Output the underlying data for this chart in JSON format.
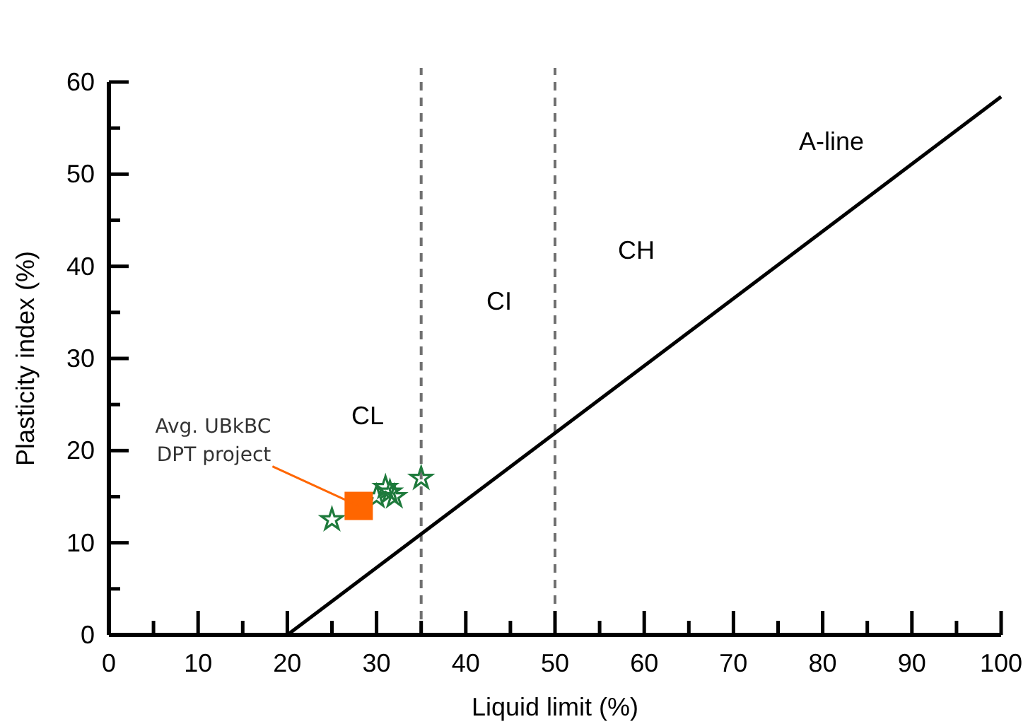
{
  "chart_data": {
    "type": "scatter",
    "xlabel": "Liquid limit (%)",
    "ylabel": "Plasticity index (%)",
    "xlim": [
      0,
      100
    ],
    "ylim": [
      0,
      60
    ],
    "xticks": [
      0,
      {
        "value": 5,
        "label": null
      },
      10,
      {
        "value": 15,
        "label": null
      },
      20,
      {
        "value": 25,
        "label": null
      },
      30,
      {
        "value": 35,
        "label": null
      },
      40,
      {
        "value": 45,
        "label": null
      },
      50,
      {
        "value": 55,
        "label": null
      },
      60,
      {
        "value": 65,
        "label": null
      },
      70,
      {
        "value": 75,
        "label": null
      },
      80,
      {
        "value": 85,
        "label": null
      },
      90,
      {
        "value": 95,
        "label": null
      },
      100
    ],
    "yticks": [
      0,
      {
        "value": 5,
        "label": null
      },
      10,
      {
        "value": 15,
        "label": null
      },
      20,
      {
        "value": 25,
        "label": null
      },
      30,
      {
        "value": 35,
        "label": null
      },
      40,
      {
        "value": 45,
        "label": null
      },
      50,
      {
        "value": 55,
        "label": null
      },
      60
    ],
    "grid": false,
    "series": [
      {
        "type": "line",
        "color": "#000000",
        "x": [
          20,
          100
        ],
        "values": [
          0,
          58.4
        ],
        "marker": "none",
        "line_style": "solid"
      },
      {
        "color": "#1e7a3c",
        "marker": "star",
        "x": [
          25,
          30,
          31,
          31.5,
          32,
          35
        ],
        "values": [
          12.5,
          15,
          16,
          15.5,
          15,
          17
        ]
      },
      {
        "color": "#ff6600",
        "marker": "square",
        "x": [
          28
        ],
        "values": [
          14
        ]
      }
    ],
    "ref_lines": [
      {
        "axis": "x",
        "value": 35,
        "color": "#707070",
        "line_style": "dashed"
      },
      {
        "axis": "x",
        "value": 50,
        "color": "#707070",
        "line_style": "dashed"
      }
    ],
    "annotations": [
      "CL",
      "CI",
      "CH",
      "A-line",
      {
        "text": "Avg. UBkBC DPT project",
        "x": 28,
        "y": 14
      }
    ]
  }
}
